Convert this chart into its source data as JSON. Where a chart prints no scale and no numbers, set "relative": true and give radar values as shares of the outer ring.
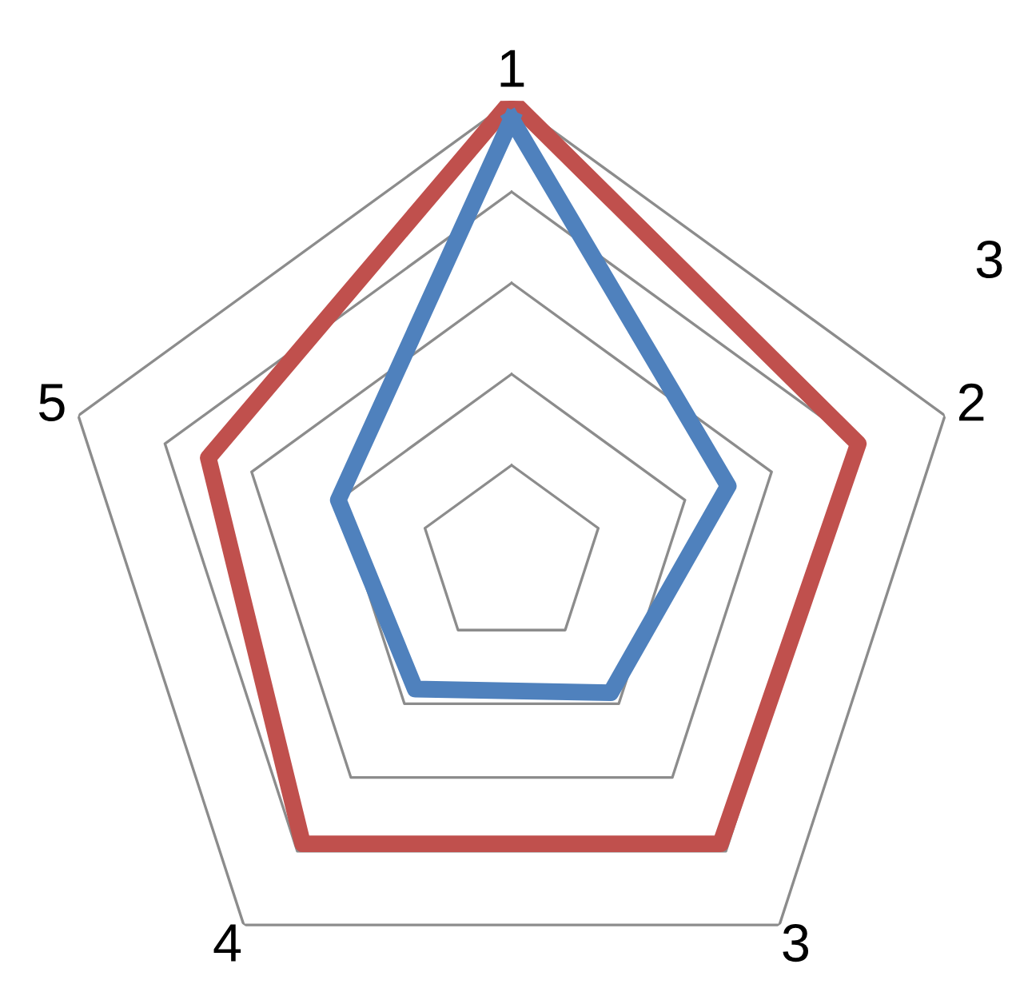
{
  "chart_data": {
    "type": "radar",
    "relative": true,
    "categories": [
      "1",
      "2",
      "3",
      "4",
      "5"
    ],
    "series": [
      {
        "color": "#c0504d",
        "values": [
          1.0,
          0.8,
          0.78,
          0.78,
          0.7
        ]
      },
      {
        "color": "#4f81bd",
        "values": [
          0.96,
          0.5,
          0.37,
          0.36,
          0.4
        ]
      }
    ],
    "grid": true,
    "annotations": [
      "3"
    ]
  }
}
